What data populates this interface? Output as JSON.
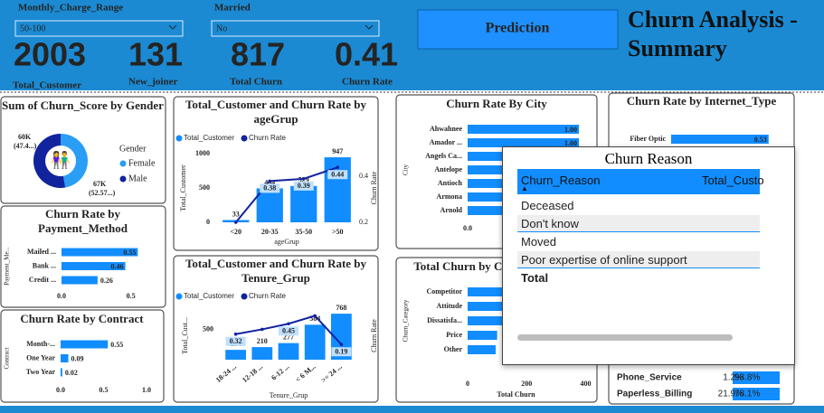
{
  "header": {
    "title": "Churn Analysis - Summary",
    "button": "Prediction",
    "filters": [
      {
        "label": "Monthly_Charge_Range",
        "value": "50-100"
      },
      {
        "label": "Married",
        "value": "No"
      }
    ],
    "kpis": [
      {
        "value": 2003,
        "label": "Total_Customer"
      },
      {
        "value": 131,
        "label": "New_joiner"
      },
      {
        "value": 817,
        "label": "Total Churn"
      },
      {
        "value": 0.41,
        "label": "Churn Rate"
      }
    ]
  },
  "chart_data": [
    {
      "type": "pie",
      "title": "Sum of Churn_Score by Gender",
      "legend_title": "Gender",
      "categories": [
        "Female",
        "Male"
      ],
      "values": [
        60000,
        67000
      ],
      "value_labels": [
        "60K",
        "67K"
      ],
      "percent_labels": [
        "(47.4...)",
        "(52.57...)"
      ],
      "colors": [
        "#2a9df4",
        "#12239e"
      ]
    },
    {
      "type": "bar_line",
      "title": "Total_Customer and Churn Rate by ageGrup",
      "x_label": "ageGrup",
      "y_label": "Total_Customer",
      "y2_label": "Churn Rate",
      "categories": [
        "<20",
        "20-35",
        "35-50",
        ">50"
      ],
      "series": [
        {
          "name": "Total_Customer",
          "color": "#118dff",
          "values": [
            33,
            494,
            529,
            947
          ]
        },
        {
          "name": "Churn Rate",
          "color": "#12239e",
          "axis": "y2",
          "values": [
            0.2,
            0.38,
            0.39,
            0.44
          ],
          "value_labels": [
            null,
            "0.38",
            "0.39",
            "0.44"
          ]
        }
      ],
      "ylim": [
        0,
        1000
      ],
      "yticks": [
        0,
        500,
        1000
      ],
      "y2lim": [
        0.2,
        0.5
      ],
      "y2ticks": [
        0.2,
        0.4
      ]
    },
    {
      "type": "hbar",
      "title": "Churn Rate by Payment_Method",
      "y_label": "Payment_Me...",
      "categories": [
        "Mailed ...",
        "Bank ...",
        "Credit ..."
      ],
      "values": [
        0.55,
        0.46,
        0.26
      ],
      "color": "#118dff",
      "xlim": [
        0,
        0.6
      ],
      "xticks": [
        {
          "value": 0,
          "label": "0.0"
        },
        0.5
      ]
    },
    {
      "type": "hbar",
      "title": "Churn Rate by Contract",
      "y_label": "Contract",
      "categories": [
        "Month-...",
        "One Year",
        "Two Year"
      ],
      "values": [
        0.55,
        0.09,
        0.02
      ],
      "color": "#118dff",
      "xlim": [
        0,
        1
      ],
      "xticks": [
        {
          "value": 0,
          "label": "0.0"
        },
        0.5,
        {
          "value": 1,
          "label": "1.0"
        }
      ]
    },
    {
      "type": "bar_line",
      "title": "Total_Customer and Churn Rate by Tenure_Grup",
      "x_label": "Tenure_Grup",
      "y_label": "Total_Cust...",
      "y2_label": "Churn Rate",
      "categories": [
        "18-24 ...",
        "12-18 ...",
        "6-12 ...",
        "< 6 M...",
        ">= 24 ..."
      ],
      "series": [
        {
          "name": "Total_Customer",
          "color": "#118dff",
          "values": [
            164,
            210,
            277,
            584,
            768
          ]
        },
        {
          "name": "Churn Rate",
          "color": "#12239e",
          "axis": "y2",
          "values": [
            0.32,
            0.38,
            0.45,
            0.55,
            0.19
          ],
          "value_labels": [
            "0.32",
            null,
            "0.45",
            null,
            "0.19"
          ]
        }
      ],
      "ylim": [
        0,
        800
      ],
      "yticks": [
        500
      ],
      "y2lim": [
        0,
        0.6
      ]
    },
    {
      "type": "hbar",
      "title": "Churn Rate By City",
      "y_label": "City",
      "categories": [
        "Ahwahnee",
        "Amador ...",
        "Angels Ca...",
        "Antelope",
        "Antioch",
        "Armona",
        "Arnold"
      ],
      "values": [
        1,
        1,
        1,
        1,
        1,
        1,
        1
      ],
      "value_labels": [
        "1.00",
        "1.00",
        "1.00",
        "1.00",
        "1.00",
        "1.00",
        "1.00"
      ],
      "color": "#118dff",
      "xlim": [
        0,
        1
      ],
      "xticks": [
        {
          "value": 0,
          "label": "0.0"
        }
      ]
    },
    {
      "type": "hbar",
      "title": "Total Churn by Churn_Category",
      "y_label": "Churn_Category",
      "x_label": "Total Churn",
      "categories": [
        "Competitor",
        "Attitude",
        "Dissatisfa...",
        "Price",
        "Other"
      ],
      "values": [
        360,
        130,
        130,
        100,
        95
      ],
      "color": "#118dff",
      "xlim": [
        0,
        420
      ],
      "xticks": [
        0,
        200,
        400
      ]
    },
    {
      "type": "hbar",
      "title": "Churn Rate by Internet_Type",
      "categories": [
        "Fiber Optic"
      ],
      "values": [
        0.53
      ],
      "color": "#118dff",
      "xlim": [
        0,
        0.6
      ]
    }
  ],
  "services_table": {
    "rows": [
      [
        "Phone_Service",
        "1.2%",
        "98.8%"
      ],
      [
        "Paperless_Billing",
        "21.9%",
        "78.1%"
      ]
    ]
  },
  "churn_reason_table": {
    "title": "Churn Reason",
    "columns": [
      "Churn_Reason",
      "Total_Custo"
    ],
    "rows": [
      "Deceased",
      "Don't know",
      "Moved",
      "Poor expertise of online support"
    ],
    "total": "Total"
  }
}
